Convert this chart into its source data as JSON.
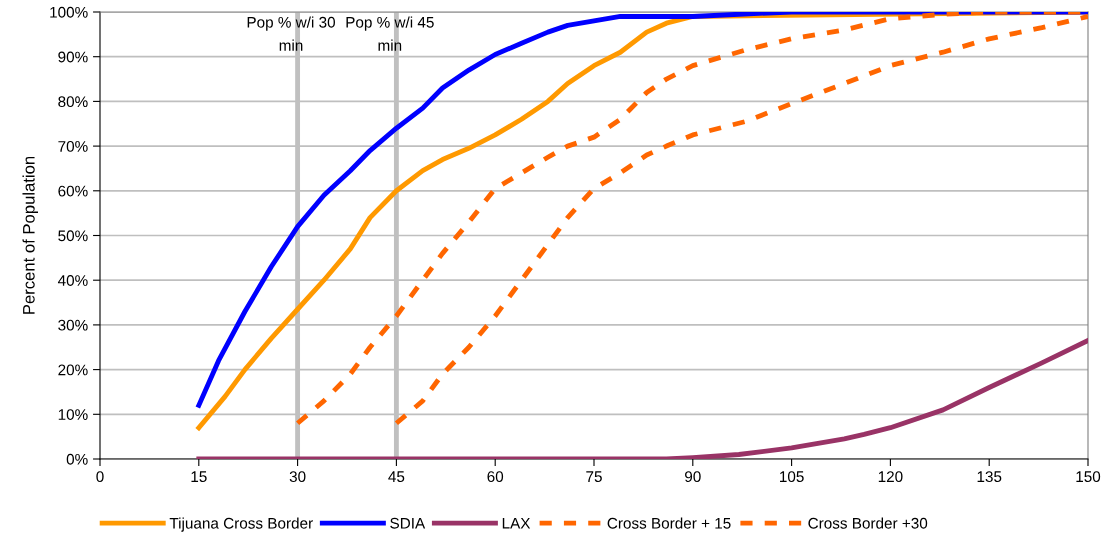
{
  "chart_data": {
    "type": "line",
    "ylabel": "Percent of Population",
    "xlim": [
      0,
      150
    ],
    "xticks": [
      0,
      15,
      30,
      45,
      60,
      75,
      90,
      105,
      120,
      135,
      150
    ],
    "ylim": [
      0,
      100
    ],
    "yticks": [
      {
        "value": 0,
        "label": "0%"
      },
      {
        "value": 10,
        "label": "10%"
      },
      {
        "value": 20,
        "label": "20%"
      },
      {
        "value": 30,
        "label": "30%"
      },
      {
        "value": 40,
        "label": "40%"
      },
      {
        "value": 50,
        "label": "50%"
      },
      {
        "value": 60,
        "label": "60%"
      },
      {
        "value": 70,
        "label": "70%"
      },
      {
        "value": 80,
        "label": "80%"
      },
      {
        "value": 90,
        "label": "90%"
      },
      {
        "value": 100,
        "label": "100%"
      }
    ],
    "grid": "y",
    "legend": "bottom",
    "marker": "none",
    "ref_lines": [
      {
        "axis": "x",
        "value": 30,
        "label": "Pop % w/i 30\nmin",
        "color": "#c0c0c0"
      },
      {
        "axis": "x",
        "value": 45,
        "label": "Pop % w/i 45\nmin",
        "color": "#c0c0c0"
      }
    ],
    "series": [
      {
        "name": "Tijuana Cross Border",
        "color": "#ff9900",
        "line_style": "solid",
        "x": [
          15,
          19,
          22,
          26,
          30,
          34,
          38,
          41,
          45,
          49,
          52,
          56,
          60,
          64,
          68,
          71,
          75,
          79,
          83,
          86,
          90,
          150
        ],
        "values": [
          7,
          14,
          20,
          27,
          33.5,
          40,
          47,
          54,
          60,
          64.5,
          67,
          69.5,
          72.5,
          76,
          80,
          84,
          88,
          91,
          95.5,
          97.5,
          99,
          100
        ]
      },
      {
        "name": "SDIA",
        "color": "#0000ff",
        "line_style": "solid",
        "x": [
          15,
          18,
          22,
          26,
          30,
          34,
          38,
          41,
          45,
          49,
          52,
          56,
          60,
          64,
          68,
          71,
          75,
          79,
          82,
          90,
          97,
          105,
          150
        ],
        "values": [
          12,
          22,
          33,
          43,
          52,
          59,
          64.5,
          69,
          74,
          78.5,
          83,
          87,
          90.5,
          93,
          95.5,
          97,
          98,
          99,
          99,
          99,
          99.5,
          100,
          100
        ]
      },
      {
        "name": "LAX",
        "color": "#993366",
        "line_style": "solid",
        "x": [
          15,
          79,
          86,
          90,
          97,
          105,
          113,
          116,
          120,
          128,
          135,
          143,
          150
        ],
        "values": [
          0,
          0,
          0,
          0.3,
          1,
          2.5,
          4.5,
          5.5,
          7,
          11,
          16,
          21.5,
          26.5
        ]
      },
      {
        "name": "Cross Border + 15",
        "color": "#ff6600",
        "line_style": "dashed",
        "x": [
          30,
          34,
          38,
          41,
          45,
          49,
          52,
          56,
          60,
          64,
          68,
          71,
          75,
          79,
          83,
          86,
          90,
          98,
          105,
          113,
          120,
          128,
          135,
          150
        ],
        "values": [
          8,
          13,
          19,
          25,
          32,
          40,
          46,
          53,
          60.5,
          64,
          67.5,
          70,
          72,
          76,
          82,
          85,
          88,
          91.5,
          94,
          96,
          98.5,
          99.5,
          100,
          100
        ]
      },
      {
        "name": "Cross Border +30",
        "color": "#ff6600",
        "line_style": "dashed",
        "x": [
          45,
          49,
          52,
          56,
          60,
          64,
          68,
          71,
          75,
          79,
          83,
          86,
          90,
          98,
          105,
          113,
          120,
          128,
          135,
          143,
          150
        ],
        "values": [
          8,
          13,
          19,
          25,
          32,
          40,
          48,
          54,
          60.5,
          64,
          68,
          70,
          72.5,
          75.5,
          79.5,
          84,
          88,
          91,
          94,
          96.5,
          99
        ]
      }
    ]
  }
}
